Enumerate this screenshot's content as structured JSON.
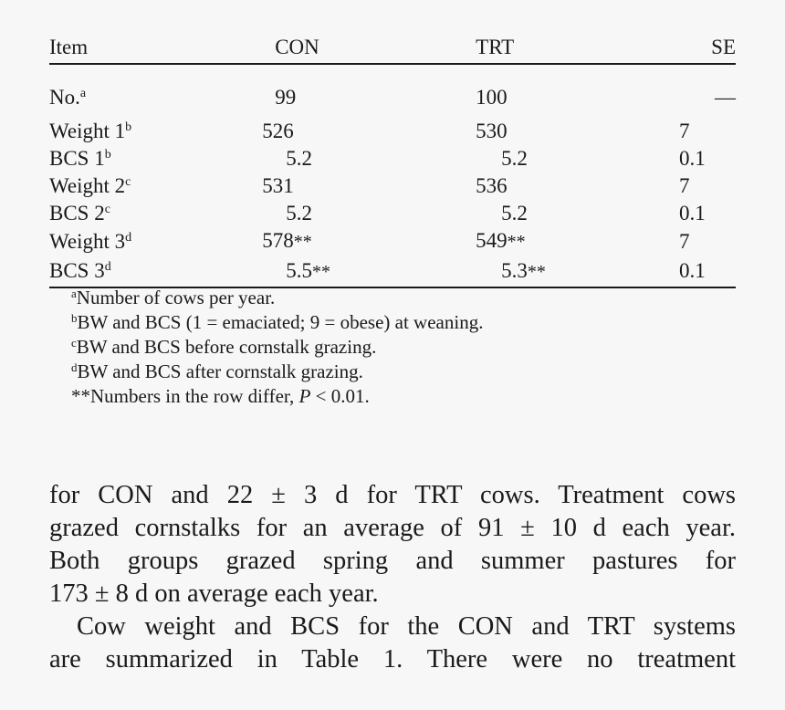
{
  "table": {
    "headers": [
      "Item",
      "CON",
      "TRT",
      "SE"
    ],
    "rows": [
      {
        "item": "No.",
        "sup": "a",
        "con": "99",
        "con_sig": "",
        "trt": "100",
        "trt_sig": "",
        "se": "—",
        "con_pad": 20,
        "trt_pad": 4
      },
      {
        "item": "Weight 1",
        "sup": "b",
        "con": "526",
        "con_sig": "",
        "trt": "530",
        "trt_sig": "",
        "se": "7",
        "con_pad": 6,
        "trt_pad": 4
      },
      {
        "item": "BCS 1",
        "sup": "b",
        "con": "5.2",
        "con_sig": "",
        "trt": "5.2",
        "trt_sig": "",
        "se": "0.1",
        "con_pad": 32,
        "trt_pad": 32
      },
      {
        "item": "Weight 2",
        "sup": "c",
        "con": "531",
        "con_sig": "",
        "trt": "536",
        "trt_sig": "",
        "se": "7",
        "con_pad": 6,
        "trt_pad": 4
      },
      {
        "item": "BCS 2",
        "sup": "c",
        "con": "5.2",
        "con_sig": "",
        "trt": "5.2",
        "trt_sig": "",
        "se": "0.1",
        "con_pad": 32,
        "trt_pad": 32
      },
      {
        "item": "Weight 3",
        "sup": "d",
        "con": "578",
        "con_sig": "**",
        "trt": "549",
        "trt_sig": "**",
        "se": "7",
        "con_pad": 6,
        "trt_pad": 4
      },
      {
        "item": "BCS 3",
        "sup": "d",
        "con": "5.5",
        "con_sig": "**",
        "trt": "5.3",
        "trt_sig": "**",
        "se": "0.1",
        "con_pad": 32,
        "trt_pad": 32
      }
    ]
  },
  "footnotes": [
    {
      "mark": "a",
      "text": "Number of cows per year."
    },
    {
      "mark": "b",
      "text": "BW and BCS (1 = emaciated; 9 = obese) at weaning."
    },
    {
      "mark": "c",
      "text": "BW and BCS before cornstalk grazing."
    },
    {
      "mark": "d",
      "text": "BW and BCS after cornstalk grazing."
    },
    {
      "mark": "",
      "text": "**Numbers in the row differ, ",
      "italic": "P",
      "tail": " < 0.01."
    }
  ],
  "body": {
    "lines_p1": [
      "for CON and 22 ± 3 d for TRT cows. Treatment cows",
      "grazed cornstalks for an average of 91 ± 10 d each year.",
      "Both groups grazed spring and summer pastures for",
      "173 ± 8 d on average each year."
    ],
    "lines_p2": [
      "Cow weight and BCS for the CON and TRT systems",
      "are summarized in Table 1. There were no treatment"
    ]
  }
}
